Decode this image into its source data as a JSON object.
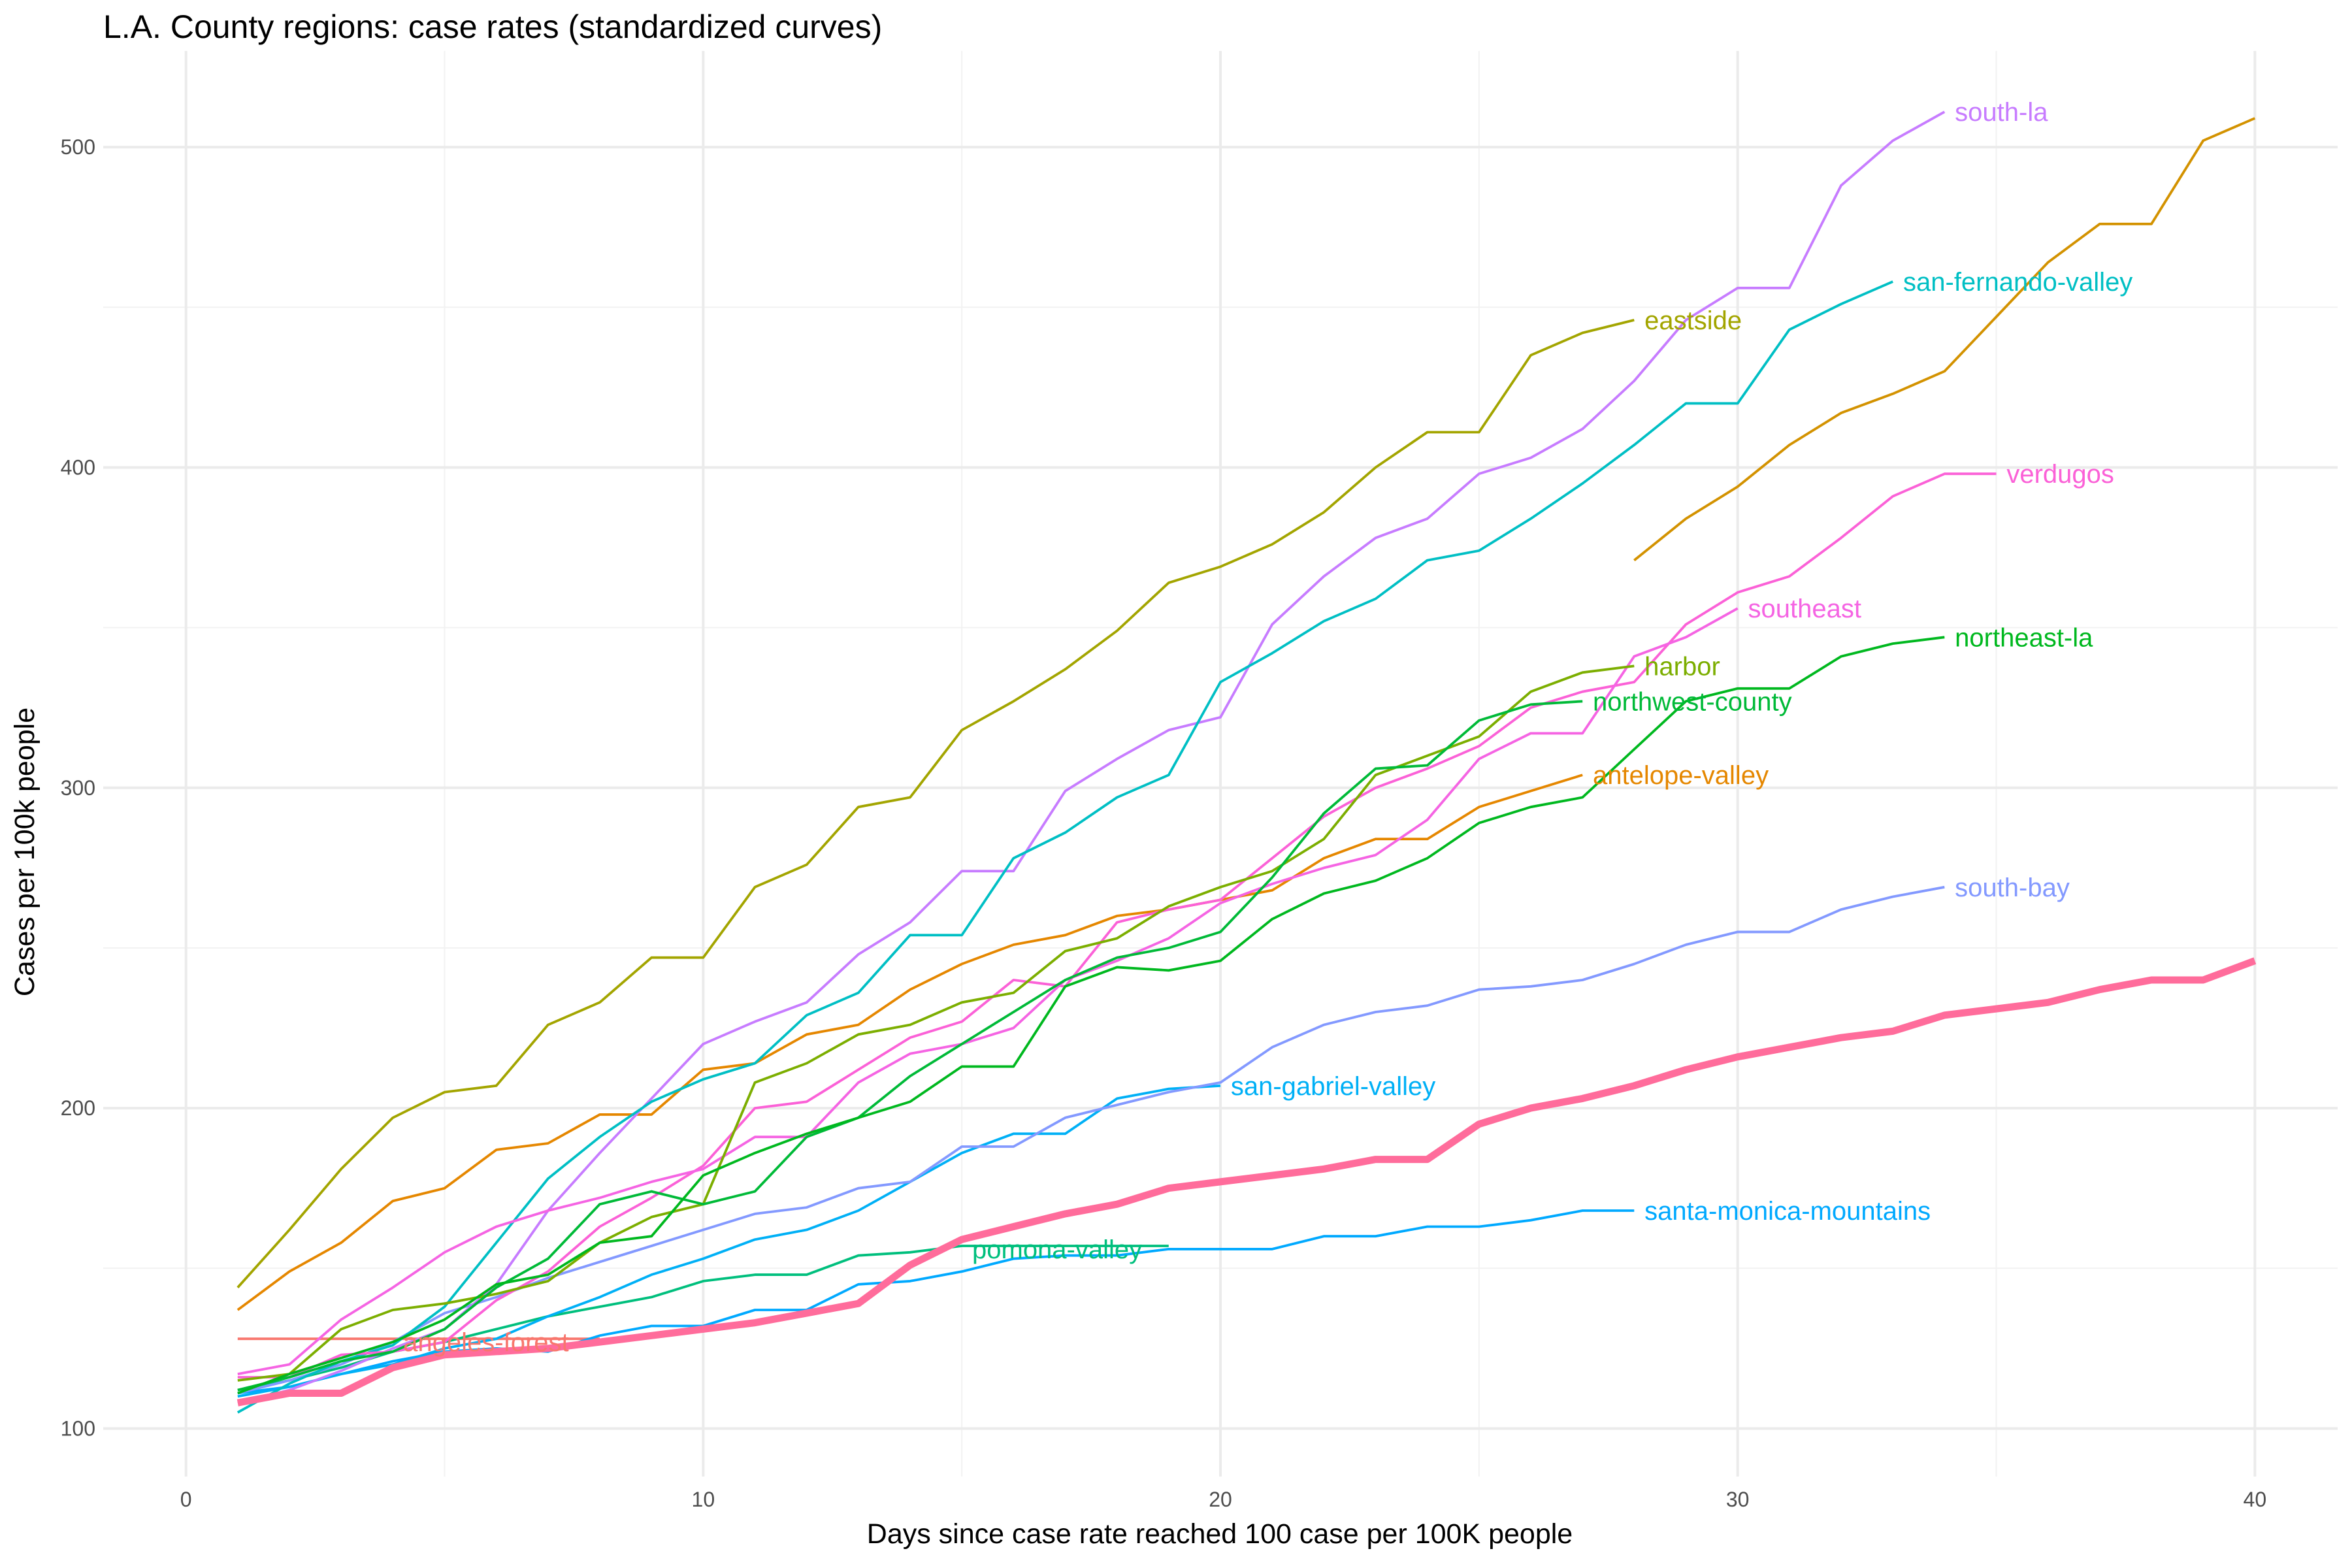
{
  "title": "L.A. County regions: case rates (standardized curves)",
  "chart_data": {
    "type": "line",
    "title": "L.A. County regions: case rates (standardized curves)",
    "xlabel": "Days since case rate reached 100 case per 100K people",
    "ylabel": "Cases per 100k people",
    "xlim": [
      -1.6,
      41.6
    ],
    "ylim": [
      85,
      530
    ],
    "xticks": [
      0,
      10,
      20,
      30,
      40
    ],
    "yticks": [
      100,
      200,
      300,
      400,
      500
    ],
    "grid": true,
    "legend": "none (direct labels at line ends)",
    "series": [
      {
        "name": "eastside",
        "color": "#a3a500",
        "width": 1.6,
        "x": [
          1,
          2,
          3,
          4,
          5,
          6,
          7,
          8,
          9,
          10,
          11,
          12,
          13,
          14,
          15,
          16,
          17,
          18,
          19,
          20,
          21,
          22,
          23,
          24,
          25,
          26,
          27,
          28
        ],
        "y": [
          144,
          162,
          181,
          197,
          205,
          207,
          226,
          233,
          247,
          247,
          269,
          276,
          294,
          297,
          318,
          327,
          337,
          349,
          364,
          369,
          376,
          386,
          400,
          411,
          411,
          435,
          442,
          446
        ]
      },
      {
        "name": "antelope-valley",
        "color": "#e58700",
        "width": 1.6,
        "x": [
          1,
          2,
          3,
          4,
          5,
          6,
          7,
          8,
          9,
          10,
          11,
          12,
          13,
          14,
          15,
          16,
          17,
          18,
          19,
          20,
          21,
          22,
          23,
          24,
          25,
          26,
          27
        ],
        "y": [
          137,
          149,
          158,
          171,
          175,
          187,
          189,
          198,
          198,
          212,
          214,
          223,
          226,
          237,
          245,
          251,
          254,
          260,
          262,
          265,
          268,
          278,
          284,
          284,
          294,
          299,
          304
        ]
      },
      {
        "name": "angeles-forest",
        "color": "#f8766d",
        "width": 1.6,
        "x": [
          1,
          2,
          3,
          4,
          5,
          6,
          7,
          8
        ],
        "y": [
          128,
          128,
          128,
          128,
          128,
          128,
          128,
          128
        ]
      },
      {
        "name": "santa-monica-mountains",
        "color": "#00a9ff",
        "width": 1.6,
        "x": [
          1,
          2,
          3,
          4,
          5,
          6,
          7,
          8,
          9,
          10,
          11,
          12,
          13,
          14,
          15,
          16,
          17,
          18,
          19,
          20,
          21,
          22,
          23,
          24,
          25,
          26,
          27,
          28
        ],
        "y": [
          111,
          113,
          117,
          121,
          124,
          125,
          124,
          129,
          132,
          132,
          137,
          137,
          145,
          146,
          149,
          153,
          154,
          154,
          156,
          156,
          156,
          160,
          160,
          163,
          163,
          165,
          168,
          168
        ]
      },
      {
        "name": "pomona-valley",
        "color": "#00bf7d",
        "width": 1.6,
        "x": [
          1,
          2,
          3,
          4,
          5,
          6,
          7,
          8,
          9,
          10,
          11,
          12,
          13,
          14,
          15,
          16,
          17,
          18,
          19
        ],
        "y": [
          112,
          115,
          119,
          124,
          127,
          131,
          135,
          138,
          141,
          146,
          148,
          148,
          154,
          155,
          157,
          157,
          157,
          157,
          157
        ]
      },
      {
        "name": "san-gabriel-valley",
        "color": "#00b0f6",
        "width": 1.6,
        "x": [
          1,
          2,
          3,
          4,
          5,
          6,
          7,
          8,
          9,
          10,
          11,
          12,
          13,
          14,
          15,
          16,
          17,
          18,
          19,
          20
        ],
        "y": [
          110,
          113,
          117,
          120,
          125,
          128,
          135,
          141,
          148,
          153,
          159,
          162,
          168,
          177,
          186,
          192,
          192,
          203,
          206,
          207
        ]
      },
      {
        "name": "south-bay",
        "color": "#8399ff",
        "width": 1.6,
        "x": [
          1,
          2,
          3,
          4,
          5,
          6,
          7,
          8,
          9,
          10,
          11,
          12,
          13,
          14,
          15,
          16,
          17,
          18,
          19,
          20,
          21,
          22,
          23,
          24,
          25,
          26,
          27,
          28,
          29,
          30,
          31,
          32,
          33,
          34
        ],
        "y": [
          111,
          115,
          120,
          127,
          136,
          141,
          147,
          152,
          157,
          162,
          167,
          169,
          175,
          177,
          188,
          188,
          197,
          201,
          205,
          208,
          219,
          226,
          230,
          232,
          237,
          238,
          240,
          245,
          251,
          255,
          255,
          262,
          266,
          269
        ]
      },
      {
        "name": "south-la",
        "color": "#c77cff",
        "width": 1.6,
        "x": [
          1,
          2,
          3,
          4,
          5,
          6,
          7,
          8,
          9,
          10,
          11,
          12,
          13,
          14,
          15,
          16,
          17,
          18,
          19,
          20,
          21,
          22,
          23,
          24,
          25,
          26,
          27,
          28,
          29,
          30,
          31,
          32,
          33,
          34
        ],
        "y": [
          108,
          112,
          118,
          125,
          131,
          145,
          168,
          186,
          203,
          220,
          227,
          233,
          248,
          258,
          274,
          274,
          299,
          309,
          318,
          322,
          351,
          366,
          378,
          384,
          398,
          403,
          412,
          427,
          446,
          456,
          456,
          488,
          502,
          511
        ]
      },
      {
        "name": "san-fernando-valley",
        "color": "#00bfc4",
        "width": 1.6,
        "x": [
          1,
          2,
          3,
          4,
          5,
          6,
          7,
          8,
          9,
          10,
          11,
          12,
          13,
          14,
          15,
          16,
          17,
          18,
          19,
          20,
          21,
          22,
          23,
          24,
          25,
          26,
          27,
          28,
          29,
          30,
          31,
          32,
          33
        ],
        "y": [
          105,
          114,
          121,
          126,
          138,
          158,
          178,
          191,
          202,
          209,
          214,
          229,
          236,
          254,
          254,
          278,
          286,
          297,
          304,
          333,
          342,
          352,
          359,
          371,
          374,
          384,
          395,
          407,
          420,
          420,
          443,
          451,
          458
        ]
      },
      {
        "name": "verdugos",
        "color": "#fb61d7",
        "width": 1.6,
        "x": [
          1,
          2,
          3,
          4,
          5,
          6,
          7,
          8,
          9,
          10,
          11,
          12,
          13,
          14,
          15,
          16,
          17,
          18,
          19,
          20,
          21,
          22,
          23,
          24,
          25,
          26,
          27,
          28,
          29,
          30,
          31,
          32,
          33,
          34,
          35
        ],
        "y": [
          116,
          116,
          123,
          124,
          127,
          140,
          149,
          163,
          172,
          182,
          200,
          202,
          212,
          222,
          227,
          240,
          238,
          258,
          262,
          265,
          278,
          291,
          300,
          306,
          313,
          325,
          330,
          333,
          351,
          361,
          366,
          378,
          391,
          398,
          398
        ]
      },
      {
        "name": "southeast",
        "color": "#f564e3",
        "width": 1.6,
        "x": [
          1,
          2,
          3,
          4,
          5,
          6,
          7,
          8,
          9,
          10,
          11,
          12,
          13,
          14,
          15,
          16,
          17,
          18,
          19,
          20,
          21,
          22,
          23,
          24,
          25,
          26,
          27,
          28,
          29,
          30
        ],
        "y": [
          117,
          120,
          134,
          144,
          155,
          163,
          168,
          172,
          177,
          181,
          191,
          191,
          208,
          217,
          220,
          225,
          240,
          246,
          253,
          264,
          270,
          275,
          279,
          290,
          309,
          317,
          317,
          341,
          347,
          356
        ]
      },
      {
        "name": "harbor",
        "color": "#7cae00",
        "width": 1.6,
        "x": [
          1,
          2,
          3,
          4,
          5,
          6,
          7,
          8,
          9,
          10,
          11,
          12,
          13,
          14,
          15,
          16,
          17,
          18,
          19,
          20,
          21,
          22,
          23,
          24,
          25,
          26,
          27,
          28
        ],
        "y": [
          115,
          117,
          131,
          137,
          139,
          142,
          146,
          158,
          166,
          170,
          208,
          214,
          223,
          226,
          233,
          236,
          249,
          253,
          263,
          269,
          274,
          284,
          304,
          310,
          316,
          330,
          336,
          338
        ]
      },
      {
        "name": "northwest-county",
        "color": "#00ba38",
        "width": 1.6,
        "x": [
          1,
          2,
          3,
          4,
          5,
          6,
          7,
          8,
          9,
          10,
          11,
          12,
          13,
          14,
          15,
          16,
          17,
          18,
          19,
          20,
          21,
          22,
          23,
          24,
          25,
          26,
          27
        ],
        "y": [
          112,
          116,
          121,
          124,
          131,
          144,
          153,
          170,
          174,
          170,
          174,
          191,
          197,
          210,
          220,
          230,
          240,
          247,
          250,
          255,
          272,
          292,
          306,
          307,
          321,
          326,
          327
        ]
      },
      {
        "name": "northeast-la",
        "color": "#00b81f",
        "width": 1.6,
        "x": [
          1,
          2,
          3,
          4,
          5,
          6,
          7,
          8,
          9,
          10,
          11,
          12,
          13,
          14,
          15,
          16,
          17,
          18,
          19,
          20,
          21,
          22,
          23,
          24,
          25,
          26,
          27,
          28,
          29,
          30,
          31,
          32,
          33,
          34
        ],
        "y": [
          111,
          117,
          122,
          127,
          134,
          145,
          148,
          158,
          160,
          179,
          186,
          192,
          197,
          202,
          213,
          213,
          238,
          244,
          243,
          246,
          259,
          267,
          271,
          278,
          289,
          294,
          297,
          312,
          327,
          331,
          331,
          341,
          345,
          347
        ]
      },
      {
        "name": "",
        "color": "#ff6c9b",
        "width": 4.6,
        "x": [
          1,
          2,
          3,
          4,
          5,
          6,
          7,
          8,
          9,
          10,
          11,
          12,
          13,
          14,
          15,
          16,
          17,
          18,
          19,
          20,
          21,
          22,
          23,
          24,
          25,
          26,
          27,
          28,
          29,
          30,
          31,
          32,
          33,
          34,
          35,
          36,
          37,
          38,
          39,
          40
        ],
        "y": [
          108,
          111,
          111,
          119,
          123,
          124,
          125,
          127,
          129,
          131,
          133,
          136,
          139,
          151,
          159,
          163,
          167,
          170,
          175,
          177,
          179,
          181,
          184,
          184,
          195,
          200,
          203,
          207,
          212,
          216,
          219,
          222,
          224,
          229,
          231,
          233,
          237,
          240,
          240,
          246
        ]
      },
      {
        "name": "",
        "color": "#d39200",
        "width": 1.6,
        "x": [
          28,
          29,
          30,
          31,
          32,
          33,
          34,
          35,
          36,
          37,
          38,
          39,
          40
        ],
        "y": [
          371,
          384,
          394,
          407,
          417,
          423,
          430,
          447,
          464,
          476,
          476,
          502,
          509
        ]
      }
    ],
    "labels": [
      {
        "text": "south-la",
        "x": 34.2,
        "y": 511,
        "color": "#c77cff"
      },
      {
        "text": "san-fernando-valley",
        "x": 33.2,
        "y": 458,
        "color": "#00bfc4"
      },
      {
        "text": "eastside",
        "x": 28.2,
        "y": 446,
        "color": "#a3a500"
      },
      {
        "text": "verdugos",
        "x": 35.2,
        "y": 398,
        "color": "#fb61d7"
      },
      {
        "text": "southeast",
        "x": 30.2,
        "y": 356,
        "color": "#f564e3"
      },
      {
        "text": "northeast-la",
        "x": 34.2,
        "y": 347,
        "color": "#00b81f"
      },
      {
        "text": "harbor",
        "x": 28.2,
        "y": 338,
        "color": "#7cae00"
      },
      {
        "text": "northwest-county",
        "x": 27.2,
        "y": 327,
        "color": "#00ba38"
      },
      {
        "text": "antelope-valley",
        "x": 27.2,
        "y": 304,
        "color": "#e58700"
      },
      {
        "text": "south-bay",
        "x": 34.2,
        "y": 269,
        "color": "#8399ff"
      },
      {
        "text": "san-gabriel-valley",
        "x": 20.2,
        "y": 207,
        "color": "#00b0f6"
      },
      {
        "text": "santa-monica-mountains",
        "x": 28.2,
        "y": 168,
        "color": "#00a9ff"
      },
      {
        "text": "pomona-valley",
        "x": 15.2,
        "y": 156,
        "color": "#00bf7d"
      },
      {
        "text": "angeles-forest",
        "x": 4.2,
        "y": 127,
        "color": "#f8766d"
      }
    ]
  }
}
